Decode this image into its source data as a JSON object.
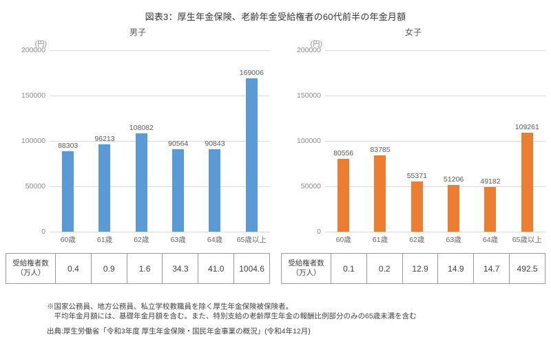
{
  "title": "図表3：厚生年金保険、老齢年金受給権者の60代前半の年金月額",
  "chart_data": [
    {
      "type": "bar",
      "title": "男子",
      "unit_label": "(円)",
      "categories": [
        "60歳",
        "61歳",
        "62歳",
        "63歳",
        "64歳",
        "65歳以上"
      ],
      "values": [
        88303,
        96213,
        108082,
        90564,
        90843,
        169006
      ],
      "bar_color": "#5B9BD5",
      "ylim": [
        0,
        200000
      ],
      "yticks": [
        0,
        50000,
        100000,
        150000,
        200000
      ],
      "grid": true,
      "legend": "none",
      "table": {
        "header_line1": "受給権者数",
        "header_line2": "（万人）",
        "values": [
          "0.4",
          "0.9",
          "1.6",
          "34.3",
          "41.0",
          "1004.6"
        ]
      }
    },
    {
      "type": "bar",
      "title": "女子",
      "unit_label": "(円)",
      "categories": [
        "60歳",
        "61歳",
        "62歳",
        "63歳",
        "64歳",
        "65歳以上"
      ],
      "values": [
        80556,
        83785,
        55371,
        51206,
        49182,
        109261
      ],
      "bar_color": "#ED7D31",
      "ylim": [
        0,
        200000
      ],
      "yticks": [
        0,
        50000,
        100000,
        150000,
        200000
      ],
      "grid": true,
      "legend": "none",
      "table": {
        "header_line1": "受給権者数",
        "header_line2": "（万人）",
        "values": [
          "0.1",
          "0.2",
          "12.9",
          "14.9",
          "14.7",
          "492.5"
        ]
      }
    }
  ],
  "notes": {
    "line1": "※国家公務員、地方公務員、私立学校教職員を除く厚生年金保険被保険者。",
    "line2": "　平均年金月額には、基礎年金月額を含む。また、特別支給の老齢厚生年金の報酬比例部分のみの65歳未満を含む",
    "source": "出典:厚生労働省「令和3年度 厚生年金保険・国民年金事業の概況」(令和4年12月)"
  }
}
